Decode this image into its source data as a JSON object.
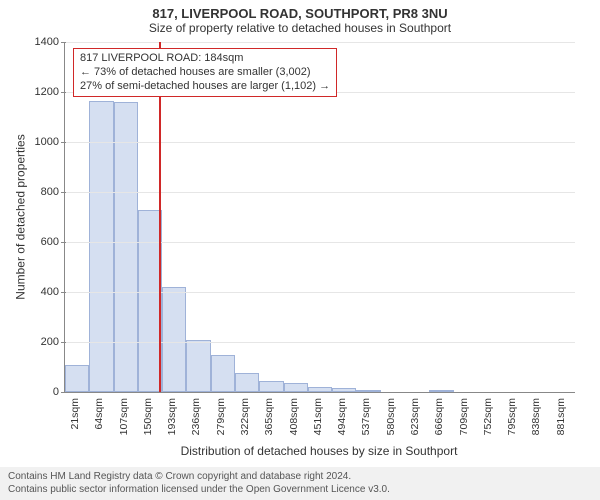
{
  "header": {
    "main_title": "817, LIVERPOOL ROAD, SOUTHPORT, PR8 3NU",
    "sub_title": "Size of property relative to detached houses in Southport"
  },
  "axes": {
    "y_label": "Number of detached properties",
    "x_label": "Distribution of detached houses by size in Southport"
  },
  "chart": {
    "type": "histogram",
    "background_color": "#ffffff",
    "grid_color": "#e6e6e6",
    "axis_color": "#888888",
    "bar_fill": "#d5dff1",
    "bar_stroke": "#9fb2d8",
    "marker_color": "#d02828",
    "ylim": [
      0,
      1400
    ],
    "yticks": [
      0,
      200,
      400,
      600,
      800,
      1000,
      1200,
      1400
    ],
    "xticks": [
      "21sqm",
      "64sqm",
      "107sqm",
      "150sqm",
      "193sqm",
      "236sqm",
      "279sqm",
      "322sqm",
      "365sqm",
      "408sqm",
      "451sqm",
      "494sqm",
      "537sqm",
      "580sqm",
      "623sqm",
      "666sqm",
      "709sqm",
      "752sqm",
      "795sqm",
      "838sqm",
      "881sqm"
    ],
    "values": [
      110,
      1165,
      1160,
      730,
      420,
      210,
      150,
      75,
      45,
      35,
      22,
      15,
      10,
      0,
      0,
      8,
      0,
      0,
      0,
      0,
      0
    ],
    "marker_sqm": 184,
    "x_min": 21,
    "x_max": 902
  },
  "annotation": {
    "line1": "817 LIVERPOOL ROAD: 184sqm",
    "line2": "← 73% of detached houses are smaller (3,002)",
    "line3": "27% of semi-detached houses are larger (1,102) →"
  },
  "footer": {
    "line1": "Contains HM Land Registry data © Crown copyright and database right 2024.",
    "line2": "Contains public sector information licensed under the Open Government Licence v3.0."
  }
}
